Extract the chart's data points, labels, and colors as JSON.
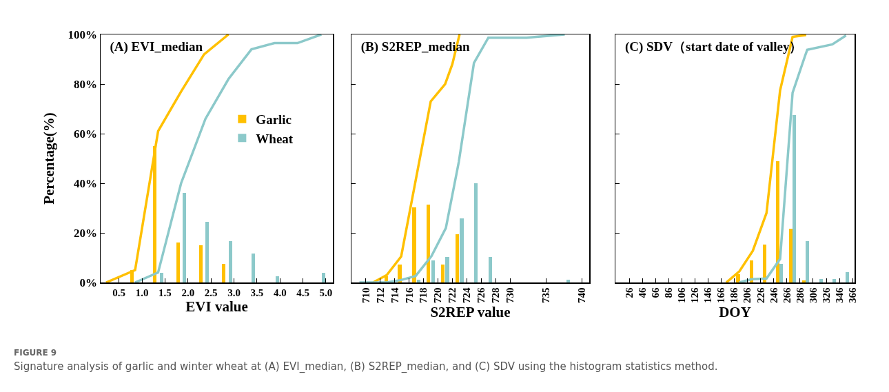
{
  "chart_data": [
    {
      "type": "bar",
      "title": "(A) EVI_median",
      "xlabel": "EVI value",
      "ylabel": "Percentage(%)",
      "xlim": [
        0.1,
        5.15
      ],
      "xticks": [
        {
          "value": 0.5,
          "label": "0.5"
        },
        {
          "value": 1,
          "label": "1.0"
        },
        {
          "value": 1.5,
          "label": "1.5"
        },
        {
          "value": 2,
          "label": "2.0"
        },
        {
          "value": 2.5,
          "label": "2.5"
        },
        {
          "value": 3,
          "label": "3.0"
        },
        {
          "value": 3.5,
          "label": "3.5"
        },
        {
          "value": 4,
          "label": "4.0"
        },
        {
          "value": 4.5,
          "label": "4.5"
        },
        {
          "value": 5,
          "label": "5.0"
        }
      ],
      "ylim": [
        0,
        100
      ],
      "yticks": [
        {
          "value": 0,
          "label": "0%"
        },
        {
          "value": 20,
          "label": "20%"
        },
        {
          "value": 40,
          "label": "40%"
        },
        {
          "value": 60,
          "label": "60%"
        },
        {
          "value": 80,
          "label": "80%"
        },
        {
          "value": 100,
          "label": "100%"
        }
      ],
      "legend": "right",
      "grid": false,
      "annotations": [
        "FIGURE 9",
        "Signature analysis of garlic and winter wheat at (A) EVI_median, (B) S2REP_median, and (C) SDV using the histogram statistics method."
      ],
      "series": [
        {
          "name": "Garlic",
          "color": "#ffc000",
          "x": [
            0.78,
            1.28,
            1.78,
            2.28,
            2.78
          ],
          "values": [
            5,
            55,
            16,
            15,
            7.4
          ]
        },
        {
          "name": "Wheat",
          "color": "#8cc9ca",
          "x": [
            1.42,
            1.92,
            2.42,
            2.92,
            3.42,
            3.95,
            4.95
          ],
          "values": [
            3.8,
            36,
            24.5,
            16.7,
            11.6,
            2.4,
            3.8
          ]
        },
        {
          "type": "line",
          "color": "#ffc000",
          "x": [
            0.22,
            0.85,
            1.35,
            1.85,
            2.35,
            2.88
          ],
          "values": [
            0,
            5,
            61,
            77,
            92,
            100
          ]
        },
        {
          "type": "line",
          "color": "#8cc9ca",
          "x": [
            0.85,
            1.35,
            1.85,
            2.38,
            2.88,
            3.38,
            3.88,
            4.38,
            4.9
          ],
          "values": [
            0,
            4,
            40,
            66,
            82,
            94,
            96.5,
            96.5,
            100
          ]
        }
      ]
    },
    {
      "type": "bar",
      "title": "(B) S2REP_median",
      "xlabel": "S2REP value",
      "xlim": [
        708,
        741
      ],
      "xticks": [
        710,
        712,
        714,
        716,
        718,
        720,
        722,
        724,
        726,
        728,
        730,
        735,
        740
      ],
      "ylim": [
        0,
        100
      ],
      "yticks": [
        0,
        20,
        40,
        60,
        80,
        100
      ],
      "tick_labels": "x",
      "legend": false,
      "grid": false,
      "series": [
        {
          "color": "#ffc000",
          "x": [
            712.8,
            714.7,
            716.7,
            718.7,
            720.7,
            722.7
          ],
          "values": [
            2.6,
            7.3,
            30.3,
            31.3,
            7.3,
            19.5
          ]
        },
        {
          "color": "#8cc9ca",
          "x": [
            717.3,
            719.3,
            721.3,
            723.3,
            725.3,
            727.3,
            738.1
          ],
          "values": [
            1.2,
            8.9,
            10.3,
            25.9,
            40,
            10.3,
            1.2
          ]
        },
        {
          "type": "line",
          "color": "#ffc000",
          "x": [
            711,
            712.9,
            714.9,
            719,
            721,
            722,
            723
          ],
          "values": [
            0,
            3,
            10.5,
            73,
            80,
            88,
            100
          ]
        },
        {
          "type": "line",
          "color": "#8cc9ca",
          "x": [
            709.1,
            712.9,
            714.9,
            716.9,
            719.1,
            721.1,
            722.9,
            725,
            727,
            732.3,
            737.6
          ],
          "values": [
            0,
            0,
            1,
            2.6,
            10.6,
            21.9,
            48.6,
            88.5,
            98.7,
            98.7,
            100
          ]
        }
      ]
    },
    {
      "type": "bar",
      "title": "(C) SDV（start date of valley）",
      "xlabel": "DOY",
      "xlim": [
        5,
        369
      ],
      "xticks": [
        26,
        46,
        66,
        86,
        106,
        126,
        146,
        166,
        186,
        206,
        226,
        246,
        266,
        286,
        306,
        326,
        346,
        366
      ],
      "ylim": [
        0,
        100
      ],
      "yticks": [
        0,
        20,
        40,
        60,
        80,
        100
      ],
      "tick_labels": "x",
      "legend": false,
      "grid": false,
      "series": [
        {
          "color": "#ffc000",
          "x": [
            191.8,
            211.8,
            232.2,
            252.2,
            272.3,
            292
          ],
          "values": [
            3.4,
            8.8,
            15.3,
            49,
            21.6,
            0.9
          ]
        },
        {
          "color": "#8cc9ca",
          "x": [
            257.4,
            277.5,
            297.5,
            317.9,
            337.9,
            357.6
          ],
          "values": [
            7.6,
            67.5,
            16.8,
            1.3,
            1.3,
            4.1
          ]
        },
        {
          "type": "line",
          "color": "#ffc000",
          "x": [
            173.8,
            193.5,
            214.2,
            235,
            255.7,
            274.7,
            295.4
          ],
          "values": [
            0,
            4.4,
            12.8,
            28,
            77.5,
            99,
            99.8
          ]
        },
        {
          "type": "line",
          "color": "#8cc9ca",
          "x": [
            193.5,
            212.5,
            235,
            255.7,
            274.7,
            293.7,
            297,
            335.2,
            356
          ],
          "values": [
            0,
            1.3,
            1.6,
            9.5,
            76.5,
            91.4,
            93.8,
            96,
            99.6
          ]
        }
      ]
    }
  ]
}
